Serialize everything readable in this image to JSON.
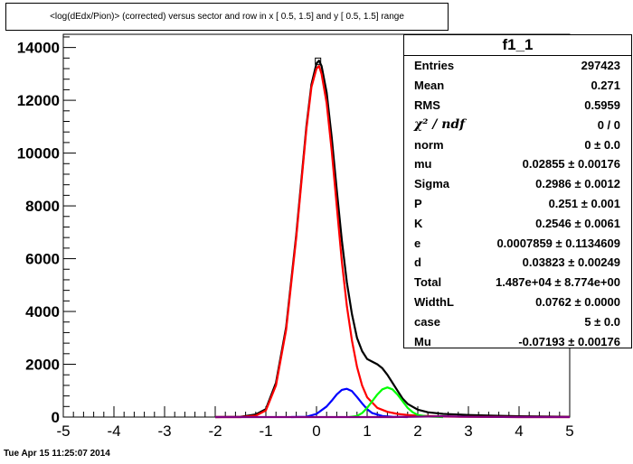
{
  "title": "<log(dEdx/Pion)> (corrected) versus sector and row in x [  0.5,  1.5] and y [  0.5,  1.5] range",
  "footer": "Tue Apr 15 11:25:07 2014",
  "stats": {
    "title": "f1_1",
    "rows": [
      {
        "label": "Entries",
        "value": "297423"
      },
      {
        "label": "Mean",
        "value": "0.271"
      },
      {
        "label": "RMS",
        "value": "0.5959"
      },
      {
        "label": "χ² / ndf",
        "value": "0 / 0"
      },
      {
        "label": "norm",
        "value": "0 ± 0.0"
      },
      {
        "label": "mu",
        "value": "0.02855 ± 0.00176"
      },
      {
        "label": "Sigma",
        "value": "0.2986 ± 0.0012"
      },
      {
        "label": "P",
        "value": "0.251 ± 0.001"
      },
      {
        "label": "K",
        "value": "0.2546 ± 0.0061"
      },
      {
        "label": "e",
        "value": "0.0007859 ± 0.1134609"
      },
      {
        "label": "d",
        "value": "0.03823 ± 0.00249"
      },
      {
        "label": "Total",
        "value": "1.487e+04 ± 8.774e+00"
      },
      {
        "label": "WidthL",
        "value": "0.0762 ± 0.0000"
      },
      {
        "label": "case",
        "value": "5 ± 0.0"
      },
      {
        "label": "Mu",
        "value": "-0.07193 ± 0.00176"
      }
    ]
  },
  "chart_data": {
    "type": "line",
    "xlim": [
      -5,
      5
    ],
    "ylim": [
      0,
      14500
    ],
    "x_ticks": [
      "-5",
      "-4",
      "-3",
      "-2",
      "-1",
      "0",
      "1",
      "2",
      "3",
      "4",
      "5"
    ],
    "y_ticks": [
      "0",
      "2000",
      "4000",
      "6000",
      "8000",
      "10000",
      "12000",
      "14000"
    ],
    "grid": false,
    "series": [
      {
        "color": "#000000",
        "x": [
          -2.0,
          -1.5,
          -1.2,
          -1.0,
          -0.8,
          -0.6,
          -0.4,
          -0.2,
          -0.1,
          0.0,
          0.05,
          0.1,
          0.2,
          0.3,
          0.4,
          0.5,
          0.6,
          0.7,
          0.8,
          0.9,
          1.0,
          1.1,
          1.2,
          1.3,
          1.4,
          1.5,
          1.6,
          1.7,
          1.8,
          2.0,
          2.2,
          2.5,
          3.0,
          3.5,
          4.0,
          5.0
        ],
        "y": [
          0,
          10,
          100,
          300,
          1300,
          3400,
          6900,
          11000,
          12600,
          13400,
          13500,
          13300,
          12300,
          10600,
          8600,
          6700,
          5100,
          3900,
          3000,
          2500,
          2200,
          2100,
          2000,
          1850,
          1600,
          1300,
          1000,
          700,
          500,
          280,
          180,
          120,
          80,
          50,
          30,
          10
        ]
      },
      {
        "color": "#ff0000",
        "x": [
          -2.0,
          -1.5,
          -1.2,
          -1.0,
          -0.8,
          -0.6,
          -0.4,
          -0.2,
          -0.1,
          0.0,
          0.05,
          0.1,
          0.2,
          0.3,
          0.4,
          0.5,
          0.6,
          0.7,
          0.8,
          0.9,
          1.0,
          1.2,
          1.4,
          1.6,
          1.8,
          2.0,
          2.5,
          3.0,
          4.0,
          5.0
        ],
        "y": [
          0,
          0,
          50,
          250,
          1200,
          3300,
          6800,
          10900,
          12500,
          13200,
          13300,
          13000,
          11900,
          10100,
          8000,
          5900,
          4200,
          2900,
          1900,
          1200,
          750,
          350,
          200,
          120,
          80,
          50,
          20,
          10,
          0,
          0
        ]
      },
      {
        "color": "#0000ff",
        "x": [
          -0.5,
          -0.2,
          0.0,
          0.2,
          0.3,
          0.4,
          0.5,
          0.6,
          0.7,
          0.8,
          0.9,
          1.0,
          1.1,
          1.3,
          1.5,
          1.8
        ],
        "y": [
          0,
          10,
          120,
          400,
          620,
          860,
          1030,
          1070,
          980,
          760,
          520,
          300,
          150,
          40,
          10,
          0
        ]
      },
      {
        "color": "#00ff00",
        "x": [
          0.65,
          0.8,
          0.9,
          1.0,
          1.1,
          1.2,
          1.3,
          1.4,
          1.5,
          1.6,
          1.7,
          1.8,
          1.9,
          2.0,
          2.2,
          2.5
        ],
        "y": [
          0,
          40,
          150,
          350,
          600,
          850,
          1050,
          1120,
          1050,
          850,
          600,
          350,
          180,
          80,
          20,
          0
        ]
      },
      {
        "color": "#800080",
        "x": [
          -2.0,
          0.0,
          1.5,
          2.5,
          3.0,
          4.0,
          5.0
        ],
        "y": [
          0,
          0,
          0,
          30,
          10,
          0,
          0
        ]
      }
    ]
  }
}
